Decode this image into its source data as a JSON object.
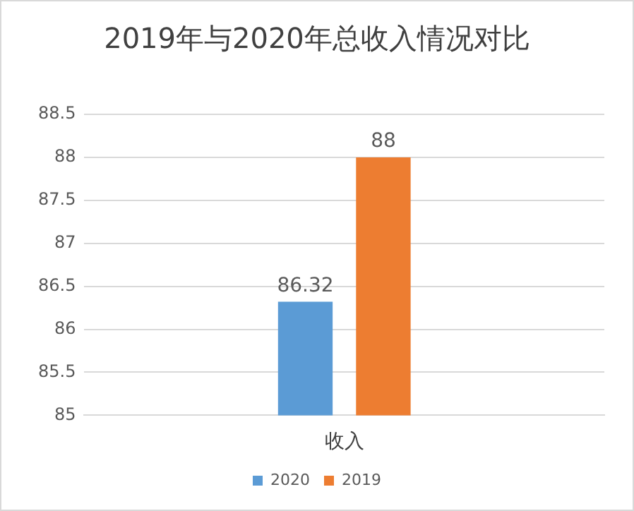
{
  "chart_data": {
    "type": "bar",
    "title": "2019年与2020年总收入情况对比",
    "categories": [
      "收入"
    ],
    "series": [
      {
        "name": "2020",
        "color": "#5b9bd5",
        "values": [
          86.32
        ]
      },
      {
        "name": "2019",
        "color": "#ed7d31",
        "values": [
          88
        ]
      }
    ],
    "ylim": [
      85,
      88.5
    ],
    "yticks": [
      85,
      85.5,
      86,
      86.5,
      87,
      87.5,
      88,
      88.5
    ],
    "grid": "y",
    "legend": "bottom",
    "data_labels": true
  }
}
